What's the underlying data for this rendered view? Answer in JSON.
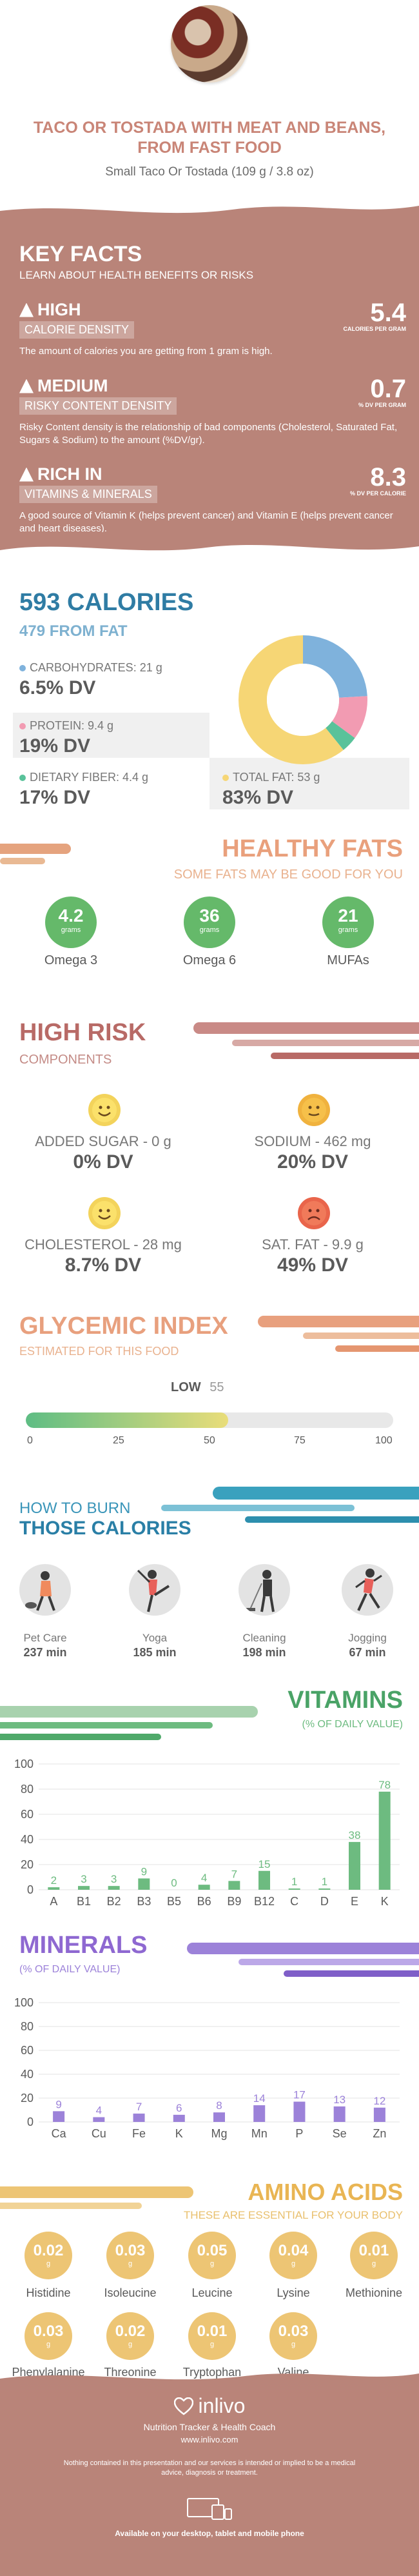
{
  "header": {
    "title": "TACO OR TOSTADA WITH MEAT AND BEANS, FROM FAST FOOD",
    "serving": "Small Taco Or Tostada (109 g / 3.8 oz)"
  },
  "key_facts": {
    "title": "KEY FACTS",
    "subtitle": "LEARN ABOUT HEALTH BENEFITS OR RISKS",
    "items": [
      {
        "level": "HIGH",
        "label": "CALORIE DENSITY",
        "value": "5.4",
        "unit": "CALORIES PER GRAM",
        "desc": "The amount of calories you are getting from 1 gram is high."
      },
      {
        "level": "MEDIUM",
        "label": "RISKY CONTENT DENSITY",
        "value": "0.7",
        "unit": "% DV PER GRAM",
        "desc": "Risky Content density is the relationship of bad components (Cholesterol, Saturated Fat, Sugars & Sodium) to the amount (%DV/gr)."
      },
      {
        "level": "RICH  IN",
        "label": "VITAMINS & MINERALS",
        "value": "8.3",
        "unit": "% DV PER CALORIE",
        "desc": "A good source of Vitamin K (helps prevent cancer) and Vitamin E (helps prevent cancer and heart diseases)."
      }
    ]
  },
  "calories": {
    "title": "593 CALORIES",
    "from_fat": "479 FROM FAT",
    "carbs": {
      "label": "CARBOHYDRATES: 21 g",
      "dv": "6.5% DV"
    },
    "protein": {
      "label": "PROTEIN: 9.4 g",
      "dv": "19% DV"
    },
    "fiber": {
      "label": "DIETARY FIBER: 4.4 g",
      "dv": "17% DV"
    },
    "fat": {
      "label": "TOTAL FAT: 53 g",
      "dv": "83% DV"
    },
    "colors": {
      "carbs": "#7fb2dc",
      "protein": "#f29bb2",
      "fiber": "#59c29a",
      "fat": "#f6d675"
    }
  },
  "healthy_fats": {
    "title": "HEALTHY FATS",
    "subtitle": "SOME FATS MAY BE GOOD FOR YOU",
    "items": [
      {
        "value": "4.2",
        "unit": "grams",
        "label": "Omega 3"
      },
      {
        "value": "36",
        "unit": "grams",
        "label": "Omega 6"
      },
      {
        "value": "21",
        "unit": "grams",
        "label": "MUFAs"
      }
    ]
  },
  "high_risk": {
    "title": "HIGH RISK",
    "subtitle": "COMPONENTS",
    "items": [
      {
        "label": "ADDED SUGAR - 0 g",
        "dv": "0% DV",
        "mood": "happy"
      },
      {
        "label": "SODIUM - 462 mg",
        "dv": "20% DV",
        "mood": "neutral"
      },
      {
        "label": "CHOLESTEROL - 28 mg",
        "dv": "8.7% DV",
        "mood": "happy"
      },
      {
        "label": "SAT. FAT - 9.9 g",
        "dv": "49% DV",
        "mood": "sad"
      }
    ]
  },
  "glycemic": {
    "title": "GLYCEMIC INDEX",
    "subtitle": "ESTIMATED FOR THIS FOOD",
    "level": "LOW",
    "value": 55,
    "value_text": "55",
    "ticks": [
      "0",
      "25",
      "50",
      "75",
      "100"
    ]
  },
  "burn": {
    "title_line1": "HOW TO BURN",
    "title_line2": "THOSE CALORIES",
    "items": [
      {
        "label": "Pet Care",
        "minutes": "237 min"
      },
      {
        "label": "Yoga",
        "minutes": "185 min"
      },
      {
        "label": "Cleaning",
        "minutes": "198 min"
      },
      {
        "label": "Jogging",
        "minutes": "67 min"
      }
    ]
  },
  "vitamins": {
    "title": "VITAMINS",
    "subtitle": "(% OF DAILY VALUE)"
  },
  "minerals": {
    "title": "MINERALS",
    "subtitle": "(% OF DAILY VALUE)"
  },
  "chart_data": [
    {
      "type": "bar",
      "title": "VITAMINS",
      "subtitle": "(% OF DAILY VALUE)",
      "categories": [
        "A",
        "B1",
        "B2",
        "B3",
        "B5",
        "B6",
        "B9",
        "B12",
        "C",
        "D",
        "E",
        "K"
      ],
      "values": [
        2,
        3,
        3,
        9,
        0,
        4,
        7,
        15,
        1,
        1,
        38,
        78
      ],
      "ylim": [
        0,
        100
      ],
      "yticks": [
        "0",
        "20",
        "40",
        "60",
        "80",
        "100"
      ],
      "color": "#6dbb80",
      "grid": true
    },
    {
      "type": "bar",
      "title": "MINERALS",
      "subtitle": "(% OF DAILY VALUE)",
      "categories": [
        "Ca",
        "Cu",
        "Fe",
        "K",
        "Mg",
        "Mn",
        "P",
        "Se",
        "Zn"
      ],
      "values": [
        9,
        4,
        7,
        6,
        8,
        14,
        17,
        13,
        12
      ],
      "ylim": [
        0,
        100
      ],
      "yticks": [
        "0",
        "20",
        "40",
        "60",
        "80",
        "100"
      ],
      "color": "#9c82d9",
      "grid": true
    }
  ],
  "amino": {
    "title": "AMINO ACIDS",
    "subtitle": "THESE ARE ESSENTIAL FOR YOUR BODY",
    "items": [
      {
        "value": "0.02",
        "unit": "g",
        "label": "Histidine"
      },
      {
        "value": "0.03",
        "unit": "g",
        "label": "Isoleucine"
      },
      {
        "value": "0.05",
        "unit": "g",
        "label": "Leucine"
      },
      {
        "value": "0.04",
        "unit": "g",
        "label": "Lysine"
      },
      {
        "value": "0.01",
        "unit": "g",
        "label": "Methionine"
      },
      {
        "value": "0.03",
        "unit": "g",
        "label": "Phenylalanine"
      },
      {
        "value": "0.02",
        "unit": "g",
        "label": "Threonine"
      },
      {
        "value": "0.01",
        "unit": "g",
        "label": "Tryptophan"
      },
      {
        "value": "0.03",
        "unit": "g",
        "label": "Valine"
      }
    ]
  },
  "footer": {
    "brand": "inlivo",
    "tagline": "Nutrition Tracker & Health Coach",
    "url": "www.inlivo.com",
    "disclaimer": "Nothing contained in this presentation and our services is intended or implied to be a medical advice, diagnosis or treatment.",
    "available": "Available on your desktop, tablet and mobile phone"
  }
}
